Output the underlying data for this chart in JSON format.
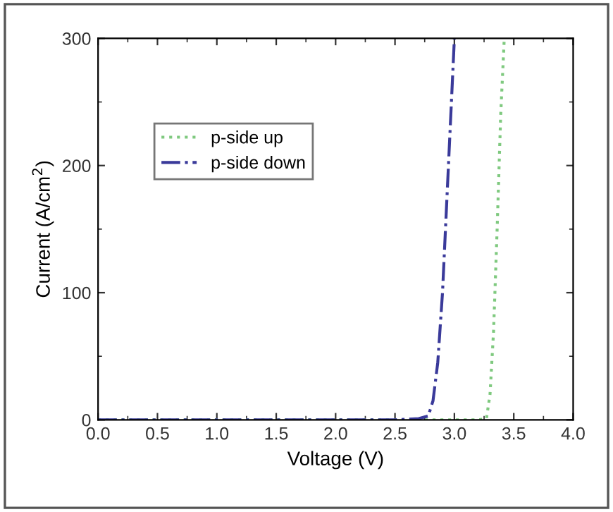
{
  "chart_data": {
    "type": "line",
    "xlabel": "Voltage (V)",
    "ylabel": "Current (A/cm$^{2}$)",
    "xlim": [
      0.0,
      4.0
    ],
    "ylim": [
      0,
      300
    ],
    "xticks": [
      {
        "value": 0.0,
        "label": "0.0"
      },
      {
        "value": 0.5,
        "label": "0.5"
      },
      {
        "value": 1.0,
        "label": "1.0"
      },
      {
        "value": 1.5,
        "label": "1.5"
      },
      {
        "value": 2.0,
        "label": "2.0"
      },
      {
        "value": 2.5,
        "label": "2.5"
      },
      {
        "value": 3.0,
        "label": "3.0"
      },
      {
        "value": 3.5,
        "label": "3.5"
      },
      {
        "value": 4.0,
        "label": "4.0"
      }
    ],
    "yticks": [
      0,
      100,
      200,
      300
    ],
    "legend": "top left",
    "grid": false,
    "series": [
      {
        "name": "p-side up",
        "color": "#7fc97f",
        "line_style": "dotted",
        "x": [
          0.0,
          1.0,
          2.0,
          3.0,
          3.2,
          3.27,
          3.3,
          3.33,
          3.36,
          3.39,
          3.42
        ],
        "values": [
          0,
          0,
          0,
          0,
          0,
          1,
          20,
          70,
          150,
          240,
          300
        ]
      },
      {
        "name": "p-side down",
        "color": "#3a3a9a",
        "line_style": "dashdot",
        "x": [
          0.0,
          1.0,
          2.0,
          2.5,
          2.7,
          2.78,
          2.82,
          2.86,
          2.9,
          2.94,
          2.98,
          3.0
        ],
        "values": [
          0,
          0,
          0,
          0,
          1,
          3,
          15,
          45,
          100,
          180,
          260,
          300
        ]
      }
    ]
  }
}
